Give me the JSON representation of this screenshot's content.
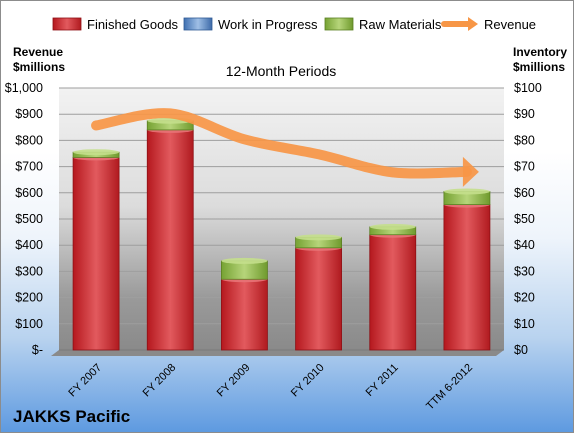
{
  "chart_data": {
    "type": "bar",
    "title": "12-Month Periods",
    "company": "JAKKS Pacific",
    "left_axis_title": [
      "Revenue",
      "$millions"
    ],
    "right_axis_title": [
      "Inventory",
      "$millions"
    ],
    "categories": [
      "FY 2007",
      "FY 2008",
      "FY 2009",
      "FY 2010",
      "FY 2011",
      "TTM 6-2012"
    ],
    "left_ylim": [
      0,
      1000
    ],
    "right_ylim": [
      0,
      100
    ],
    "left_tick_labels": [
      "$-",
      "$100",
      "$200",
      "$300",
      "$400",
      "$500",
      "$600",
      "$700",
      "$800",
      "$900",
      "$1,000"
    ],
    "right_tick_labels": [
      "$0",
      "$10",
      "$20",
      "$30",
      "$40",
      "$50",
      "$60",
      "$70",
      "$80",
      "$90",
      "$100"
    ],
    "legend_position": "top",
    "grid": true,
    "series": [
      {
        "name": "Finished Goods",
        "type": "stacked-bar",
        "axis": "right",
        "color": "#c0282d",
        "values": [
          73.5,
          84,
          27,
          39,
          44,
          55.5
        ]
      },
      {
        "name": "Work in Progress",
        "type": "stacked-bar",
        "axis": "right",
        "color": "#4f81bd",
        "values": [
          0,
          0,
          0,
          0,
          0,
          0
        ]
      },
      {
        "name": "Raw Materials",
        "type": "stacked-bar",
        "axis": "right",
        "color": "#8db043",
        "values": [
          2,
          3.5,
          7,
          4,
          3,
          5
        ]
      },
      {
        "name": "Revenue",
        "type": "line",
        "axis": "left",
        "color": "#f79646",
        "values": [
          857,
          903,
          804,
          747,
          678,
          680
        ]
      }
    ]
  }
}
